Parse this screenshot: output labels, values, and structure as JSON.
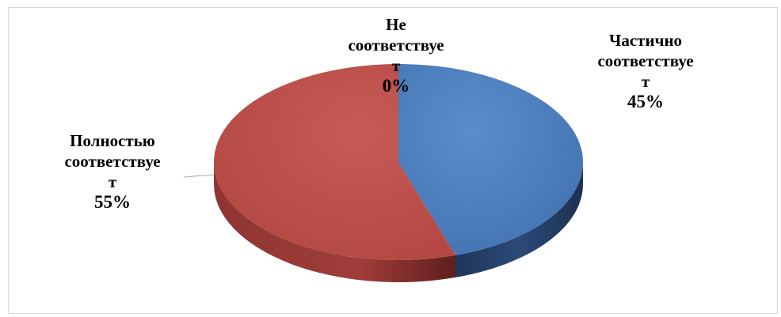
{
  "chart_data": {
    "type": "pie",
    "style": "3d",
    "title": "",
    "slices": [
      {
        "label": "Частично\nсоответствуе\nт",
        "value": 45,
        "value_label": "45%",
        "color": "#4f81bd"
      },
      {
        "label": "Не\nсоответствуе\nт",
        "value": 0,
        "value_label": "0%",
        "color": "#9bbb59"
      },
      {
        "label": "Полностью\nсоответствуе\nт",
        "value": 55,
        "value_label": "55%",
        "color": "#c0504d"
      }
    ],
    "legend": "none"
  }
}
